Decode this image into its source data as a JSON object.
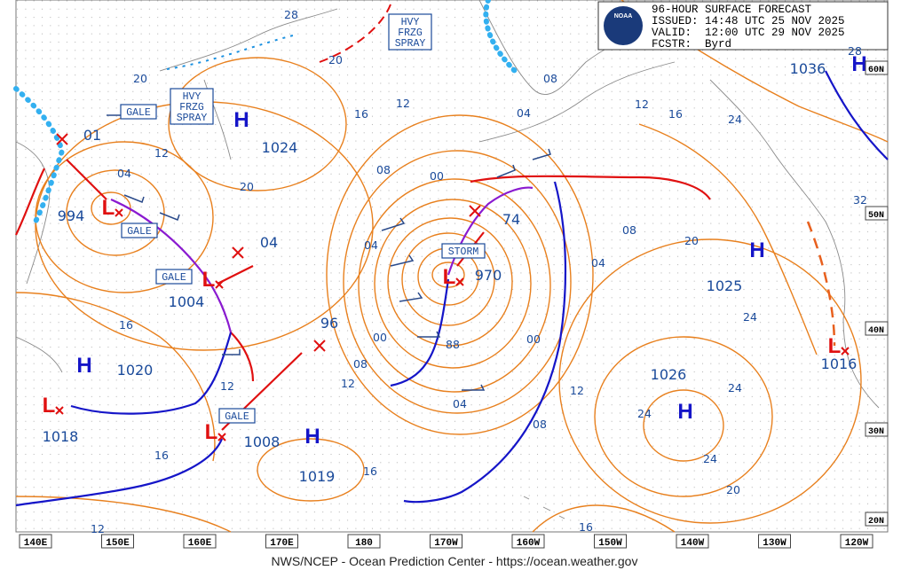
{
  "header": {
    "lines": [
      "96-HOUR SURFACE FORECAST",
      "ISSUED: 14:48 UTC 25 NOV 2025",
      "VALID:  12:00 UTC 29 NOV 2025",
      "FCSTR:  Byrd"
    ],
    "logo": "NOAA"
  },
  "footer": "NWS/NCEP - Ocean Prediction Center - https://ocean.weather.gov",
  "centers": [
    {
      "symbol": "H",
      "pressure": "1036"
    },
    {
      "symbol": "H",
      "pressure": "1024"
    },
    {
      "symbol": "L",
      "pressure": "994"
    },
    {
      "symbol": "L",
      "pressure": "1004"
    },
    {
      "symbol": "H",
      "pressure": "1020"
    },
    {
      "symbol": "L",
      "pressure": "1018"
    },
    {
      "symbol": "L",
      "pressure": "1008"
    },
    {
      "symbol": "H",
      "pressure": "1019"
    },
    {
      "symbol": "L",
      "pressure": "970"
    },
    {
      "symbol": "H",
      "pressure": "1025"
    },
    {
      "symbol": "H",
      "pressure": "1026"
    },
    {
      "symbol": "L",
      "pressure": "1016"
    },
    {
      "pressure": "74"
    },
    {
      "pressure": "96"
    },
    {
      "pressure": "04"
    },
    {
      "pressure": "01"
    }
  ],
  "warnings": [
    {
      "lines": [
        "GALE"
      ]
    },
    {
      "lines": [
        "HVY",
        "FRZG",
        "SPRAY"
      ]
    },
    {
      "lines": [
        "HVY",
        "FRZG",
        "SPRAY"
      ]
    },
    {
      "lines": [
        "GALE"
      ]
    },
    {
      "lines": [
        "GALE"
      ]
    },
    {
      "lines": [
        "STORM"
      ]
    },
    {
      "lines": [
        "GALE"
      ]
    }
  ],
  "isobar_labels": [
    "28",
    "20",
    "20",
    "16",
    "12",
    "08",
    "04",
    "12",
    "16",
    "24",
    "28",
    "20",
    "12",
    "04",
    "08",
    "00",
    "04",
    "00",
    "08",
    "12",
    "04",
    "88",
    "00",
    "04",
    "08",
    "20",
    "24",
    "24",
    "24",
    "24",
    "20",
    "12",
    "08",
    "16",
    "16",
    "12",
    "16",
    "16",
    "12",
    "32"
  ],
  "longitudes": [
    "140E",
    "150E",
    "160E",
    "170E",
    "180",
    "170W",
    "160W",
    "150W",
    "140W",
    "130W",
    "120W"
  ],
  "latitudes": [
    "60N",
    "50N",
    "40N",
    "30N",
    "20N"
  ]
}
